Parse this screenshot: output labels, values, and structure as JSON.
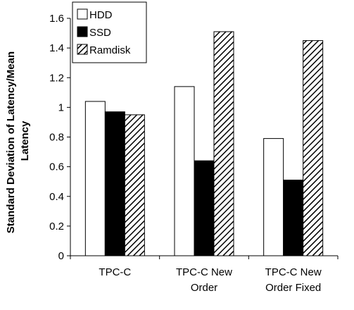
{
  "chart_data": {
    "type": "bar",
    "categories": [
      "TPC-C",
      "TPC-C New Order",
      "TPC-C New Order Fixed"
    ],
    "category_lines": [
      [
        "TPC-C"
      ],
      [
        "TPC-C New",
        "Order"
      ],
      [
        "TPC-C New",
        "Order Fixed"
      ]
    ],
    "series": [
      {
        "name": "HDD",
        "values": [
          1.04,
          1.14,
          0.79
        ],
        "fill": "#ffffff"
      },
      {
        "name": "SSD",
        "values": [
          0.97,
          0.64,
          0.51
        ],
        "fill": "#000000"
      },
      {
        "name": "Ramdisk",
        "values": [
          0.95,
          1.51,
          1.45
        ],
        "fill": "hatch"
      }
    ],
    "ylabel_lines": [
      "Standard Deviation of Latency/Mean",
      "Latency"
    ],
    "xlabel": "",
    "title": "",
    "ylim": [
      0,
      1.6
    ],
    "yticks": [
      0,
      0.2,
      0.4,
      0.6,
      0.8,
      1,
      1.2,
      1.4,
      1.6
    ],
    "ytick_labels": [
      "0",
      "0.2",
      "0.4",
      "0.6",
      "0.8",
      "1",
      "1.2",
      "1.4",
      "1.6"
    ],
    "grid": false,
    "legend_position": "top-left"
  }
}
